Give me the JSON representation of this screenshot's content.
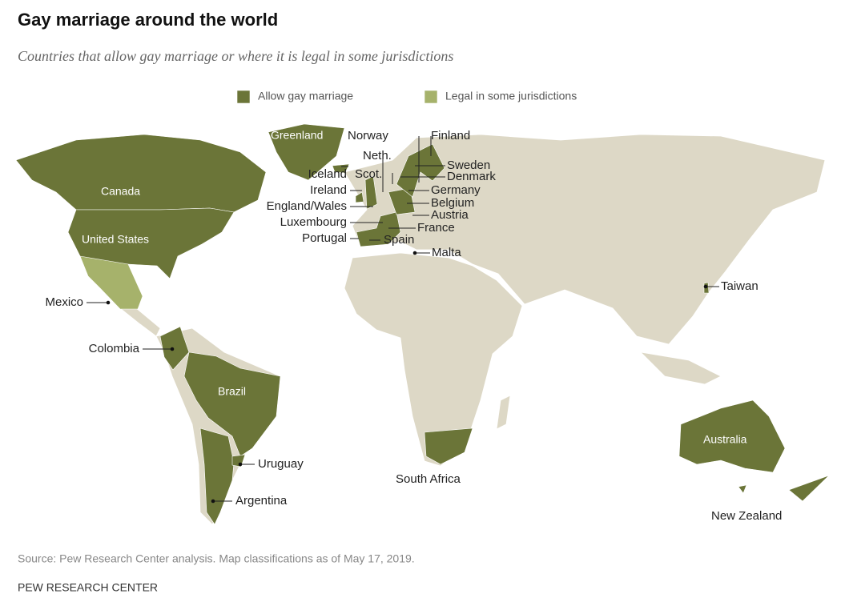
{
  "header": {
    "title": "Gay marriage around the world",
    "subtitle": "Countries that allow gay marriage or where it is legal in some jurisdictions"
  },
  "legend": [
    {
      "label": "Allow gay marriage",
      "color": "#6b7538"
    },
    {
      "label": "Legal in some jurisdictions",
      "color": "#a6b26b"
    }
  ],
  "map": {
    "labels": [
      "Greenland",
      "Canada",
      "United States",
      "Mexico",
      "Colombia",
      "Brazil",
      "Uruguay",
      "Argentina",
      "Iceland",
      "Ireland",
      "England/Wales",
      "Luxembourg",
      "Portugal",
      "Spain",
      "Scot.",
      "Neth.",
      "Norway",
      "Finland",
      "Sweden",
      "Denmark",
      "Germany",
      "Belgium",
      "Austria",
      "France",
      "Malta",
      "South Africa",
      "Taiwan",
      "Australia",
      "New Zealand"
    ]
  },
  "footer": {
    "source": "Source: Pew Research Center analysis. Map classifications as of May 17, 2019.",
    "org": "PEW RESEARCH CENTER"
  }
}
